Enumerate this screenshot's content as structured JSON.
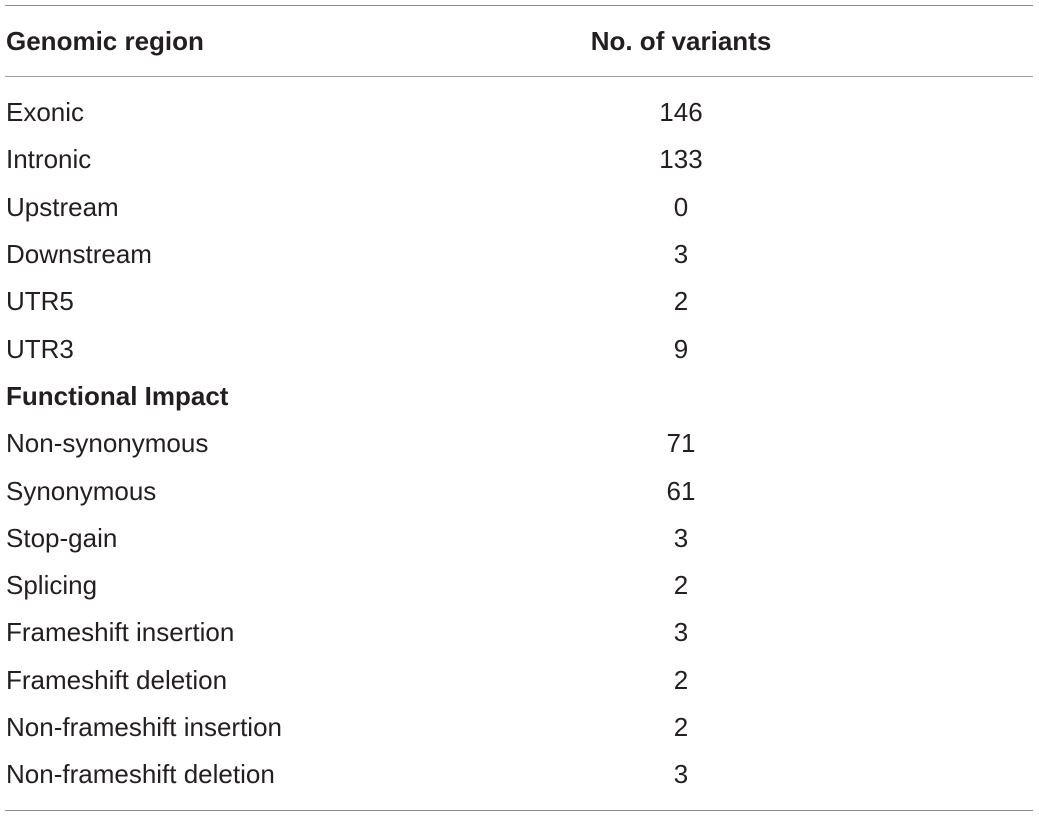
{
  "table": {
    "header": {
      "col1": "Genomic region",
      "col2": "No. of variants"
    },
    "rows": [
      {
        "label": "Exonic",
        "value": "146"
      },
      {
        "label": "Intronic",
        "value": "133"
      },
      {
        "label": "Upstream",
        "value": "0"
      },
      {
        "label": "Downstream",
        "value": "3"
      },
      {
        "label": "UTR5",
        "value": "2"
      },
      {
        "label": "UTR3",
        "value": "9"
      },
      {
        "label": "Functional Impact",
        "value": ""
      },
      {
        "label": "Non-synonymous",
        "value": "71"
      },
      {
        "label": "Synonymous",
        "value": "61"
      },
      {
        "label": "Stop-gain",
        "value": "3"
      },
      {
        "label": "Splicing",
        "value": "2"
      },
      {
        "label": "Frameshift insertion",
        "value": "3"
      },
      {
        "label": "Frameshift deletion",
        "value": "2"
      },
      {
        "label": "Non-frameshift insertion",
        "value": "2"
      },
      {
        "label": "Non-frameshift deletion",
        "value": "3"
      }
    ]
  }
}
